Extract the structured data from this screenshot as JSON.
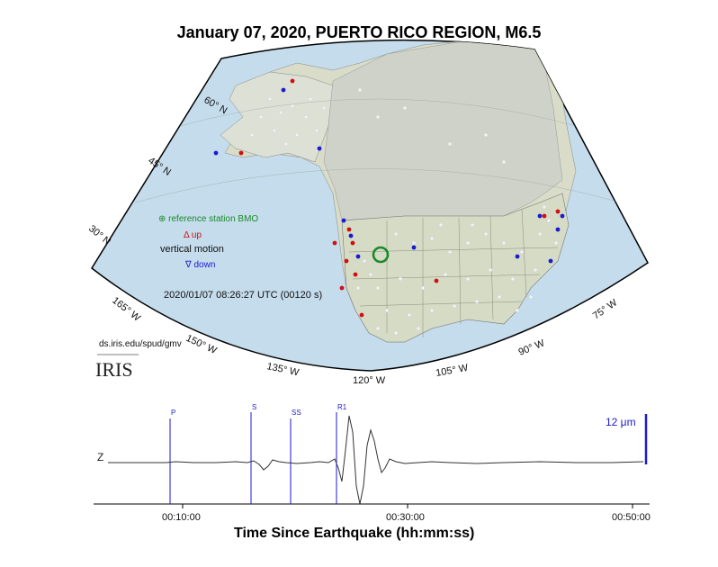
{
  "title": "January 07, 2020, PUERTO RICO REGION, M6.5",
  "legend": {
    "reference": "⊕ reference station BMO",
    "up": "Δ up",
    "vertical": "vertical motion",
    "down": "∇ down"
  },
  "timestamp": "2020/01/07 08:26:27 UTC (00120 s)",
  "lat_labels": [
    "60° N",
    "45° N",
    "30° N"
  ],
  "lon_labels": [
    "165° W",
    "150° W",
    "135° W",
    "120° W",
    "105° W",
    "90° W",
    "75° W"
  ],
  "url": "ds.iris.edu/spud/gmv",
  "logo": "IRIS",
  "seismogram": {
    "component": "Z",
    "scale_label": "12 μm",
    "phases": [
      "P",
      "S",
      "SS",
      "R1"
    ],
    "ticks": [
      "00:10:00",
      "00:30:00",
      "00:50:00"
    ],
    "xlabel": "Time Since Earthquake (hh:mm:ss)"
  },
  "colors": {
    "ocean": "#c5dcec",
    "land": "#d8dcc8",
    "reference": "#1a8a2a",
    "up": "#d01010",
    "down": "#1a1ad0"
  }
}
